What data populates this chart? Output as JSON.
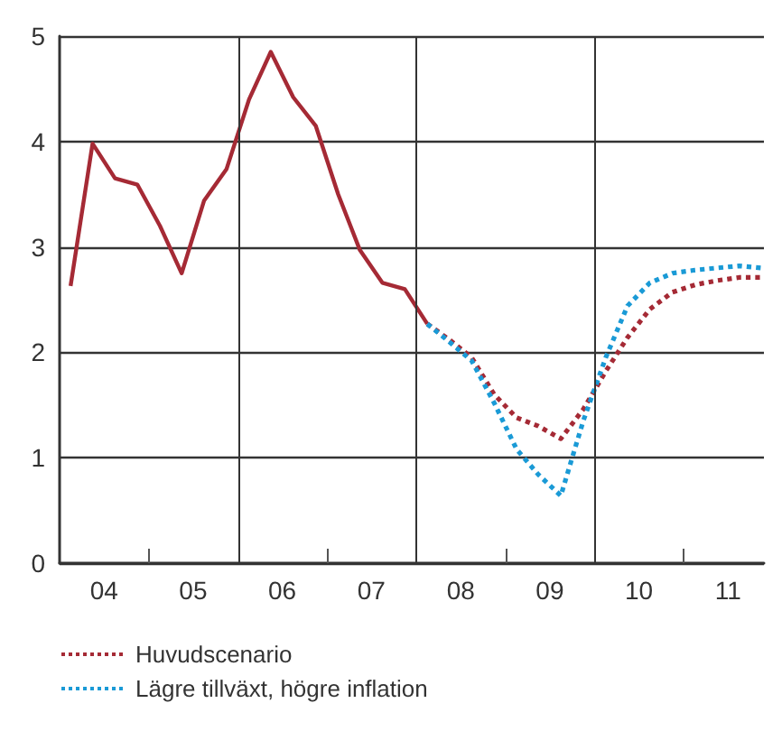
{
  "chart_data": {
    "type": "line",
    "xlim": [
      "2004-01-01",
      "2011-11-25"
    ],
    "ylim": [
      0,
      5
    ],
    "yticks": [
      0,
      1,
      2,
      3,
      4,
      5
    ],
    "xticks": [
      {
        "value": "2004-07-01",
        "label": "04"
      },
      {
        "value": "2005-01-01",
        "label": null
      },
      {
        "value": "2005-07-01",
        "label": "05"
      },
      {
        "value": "2006-07-01",
        "label": "06"
      },
      {
        "value": "2007-01-01",
        "label": null
      },
      {
        "value": "2007-07-01",
        "label": "07"
      },
      {
        "value": "2008-07-01",
        "label": "08"
      },
      {
        "value": "2009-01-01",
        "label": null
      },
      {
        "value": "2009-07-01",
        "label": "09"
      },
      {
        "value": "2010-07-01",
        "label": "10"
      },
      {
        "value": "2011-01-01",
        "label": null
      },
      {
        "value": "2011-07-01",
        "label": "11"
      }
    ],
    "grid": "y",
    "legend": "bottom",
    "marker": "none",
    "ref_lines": [
      {
        "axis": "x",
        "value": "2006-01-01",
        "color": "#333333"
      },
      {
        "axis": "x",
        "value": "2008-01-01",
        "color": "#333333"
      },
      {
        "axis": "x",
        "value": "2010-01-01",
        "color": "#333333"
      }
    ],
    "series": [
      {
        "color": "#a52a35",
        "line_style": "solid",
        "x": [
          "2004-02-15",
          "2004-05-15",
          "2004-08-15",
          "2004-11-15",
          "2005-02-15",
          "2005-05-15",
          "2005-08-15",
          "2005-11-15",
          "2006-02-15",
          "2006-05-15",
          "2006-08-15",
          "2006-11-15",
          "2007-02-15",
          "2007-05-15",
          "2007-08-15",
          "2007-11-15",
          "2008-02-15"
        ],
        "values": [
          2.63,
          3.98,
          3.65,
          3.59,
          3.2,
          2.75,
          3.44,
          3.74,
          4.4,
          4.85,
          4.42,
          4.15,
          3.5,
          2.97,
          2.66,
          2.6,
          2.27
        ]
      },
      {
        "name": "Huvudscenario",
        "color": "#a52a35",
        "line_style": "dotted",
        "x": [
          "2008-02-15",
          "2008-05-15",
          "2008-08-15",
          "2008-11-15",
          "2009-02-15",
          "2009-05-15",
          "2009-08-15",
          "2009-11-15",
          "2010-02-15",
          "2010-05-15",
          "2010-08-15",
          "2010-11-15",
          "2011-02-15",
          "2011-05-15",
          "2011-08-15",
          "2011-11-15"
        ],
        "values": [
          2.27,
          2.12,
          1.95,
          1.6,
          1.38,
          1.3,
          1.18,
          1.46,
          1.82,
          2.14,
          2.41,
          2.57,
          2.64,
          2.68,
          2.71,
          2.71
        ]
      },
      {
        "name": "Lägre tillväxt, högre inflation",
        "color": "#1a9ad6",
        "line_style": "dotted",
        "x": [
          "2008-02-15",
          "2008-05-15",
          "2008-08-15",
          "2008-11-15",
          "2009-02-15",
          "2009-05-15",
          "2009-08-15",
          "2009-11-15",
          "2010-02-15",
          "2010-05-15",
          "2010-08-15",
          "2010-11-15",
          "2011-02-15",
          "2011-05-15",
          "2011-08-15",
          "2011-11-15"
        ],
        "values": [
          2.27,
          2.1,
          1.92,
          1.52,
          1.08,
          0.84,
          0.64,
          1.35,
          1.95,
          2.44,
          2.66,
          2.75,
          2.78,
          2.8,
          2.82,
          2.8
        ]
      }
    ]
  }
}
